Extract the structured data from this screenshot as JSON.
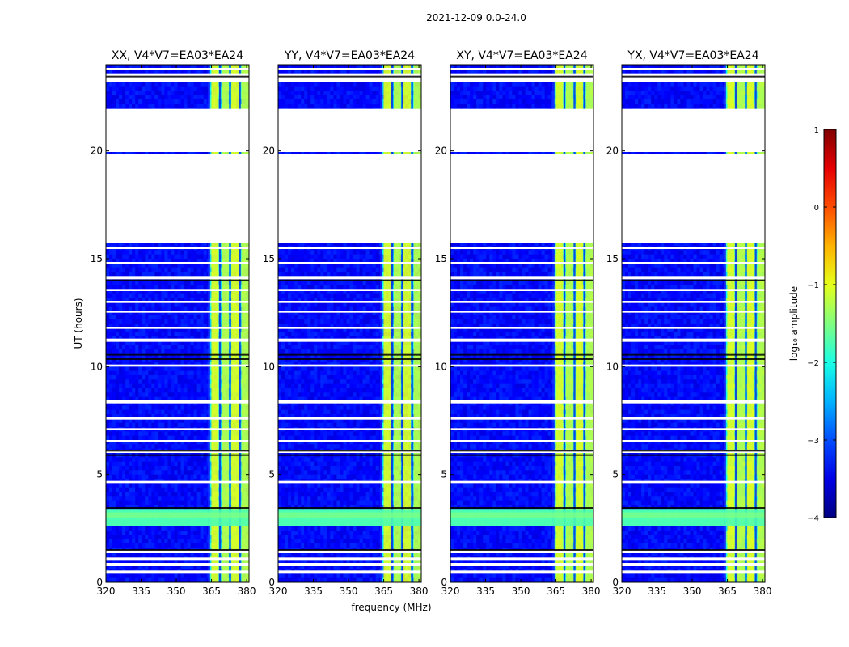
{
  "figure": {
    "suptitle": "2021-12-09 0.0-24.0"
  },
  "colors": {
    "background": "#ffffff",
    "axis": "#000000",
    "gap": "#ffffff",
    "dark_line": "#000000"
  },
  "chart_data": {
    "type": "heatmap",
    "title": "2021-12-09 0.0-24.0",
    "xlabel": "frequency (MHz)",
    "ylabel": "UT (hours)",
    "xlim": [
      320,
      381
    ],
    "ylim": [
      0,
      24
    ],
    "xticks": [
      320,
      335,
      350,
      365,
      380
    ],
    "yticks": [
      0,
      5,
      10,
      15,
      20
    ],
    "rfi_band_MHz": [
      363.8,
      380.8
    ],
    "rfi_channels_MHz": [
      366.5,
      370.8,
      375.0,
      379.3
    ],
    "broadband_hours": [
      2.6,
      3.4
    ],
    "gaps_hours": [
      [
        19.95,
        21.95
      ],
      [
        15.75,
        19.85
      ],
      [
        23.2,
        23.6
      ],
      [
        0.4,
        0.55
      ],
      [
        0.75,
        0.9
      ],
      [
        1.0,
        1.15
      ],
      [
        1.35,
        1.5
      ],
      [
        4.6,
        4.7
      ],
      [
        6.0,
        6.15
      ],
      [
        6.5,
        6.6
      ],
      [
        7.05,
        7.15
      ],
      [
        7.55,
        7.65
      ],
      [
        8.3,
        8.45
      ],
      [
        10.0,
        10.1
      ],
      [
        11.15,
        11.3
      ],
      [
        11.75,
        11.85
      ],
      [
        12.5,
        12.6
      ],
      [
        12.95,
        13.05
      ],
      [
        13.5,
        13.6
      ],
      [
        14.05,
        14.2
      ],
      [
        14.75,
        14.85
      ],
      [
        15.45,
        15.55
      ],
      [
        20.85,
        20.95
      ],
      [
        21.2,
        21.3
      ],
      [
        21.55,
        21.65
      ],
      [
        23.75,
        23.85
      ]
    ],
    "dark_lines_hours": [
      10.35,
      10.55,
      6.1,
      5.9,
      3.45,
      1.5,
      14.0,
      23.45
    ],
    "panels": [
      {
        "title": "XX, V4*V7=EA03*EA24",
        "pol": "XX",
        "rfi_strength": 1.0,
        "bright_low_freq": false
      },
      {
        "title": "YY, V4*V7=EA03*EA24",
        "pol": "YY",
        "rfi_strength": 1.15,
        "bright_low_freq": false
      },
      {
        "title": "XY, V4*V7=EA03*EA24",
        "pol": "XY",
        "rfi_strength": 0.95,
        "bright_low_freq": false
      },
      {
        "title": "YX, V4*V7=EA03*EA24",
        "pol": "YX",
        "rfi_strength": 0.9,
        "bright_low_freq": false
      }
    ],
    "colorbar": {
      "label": "log₁₀ amplitude",
      "min": -4,
      "max": 1,
      "ticks": [
        1,
        0,
        -1,
        -2,
        -3,
        -4
      ],
      "tick_labels": [
        "1",
        "0",
        "−1",
        "−2",
        "−3",
        "−4"
      ]
    }
  }
}
